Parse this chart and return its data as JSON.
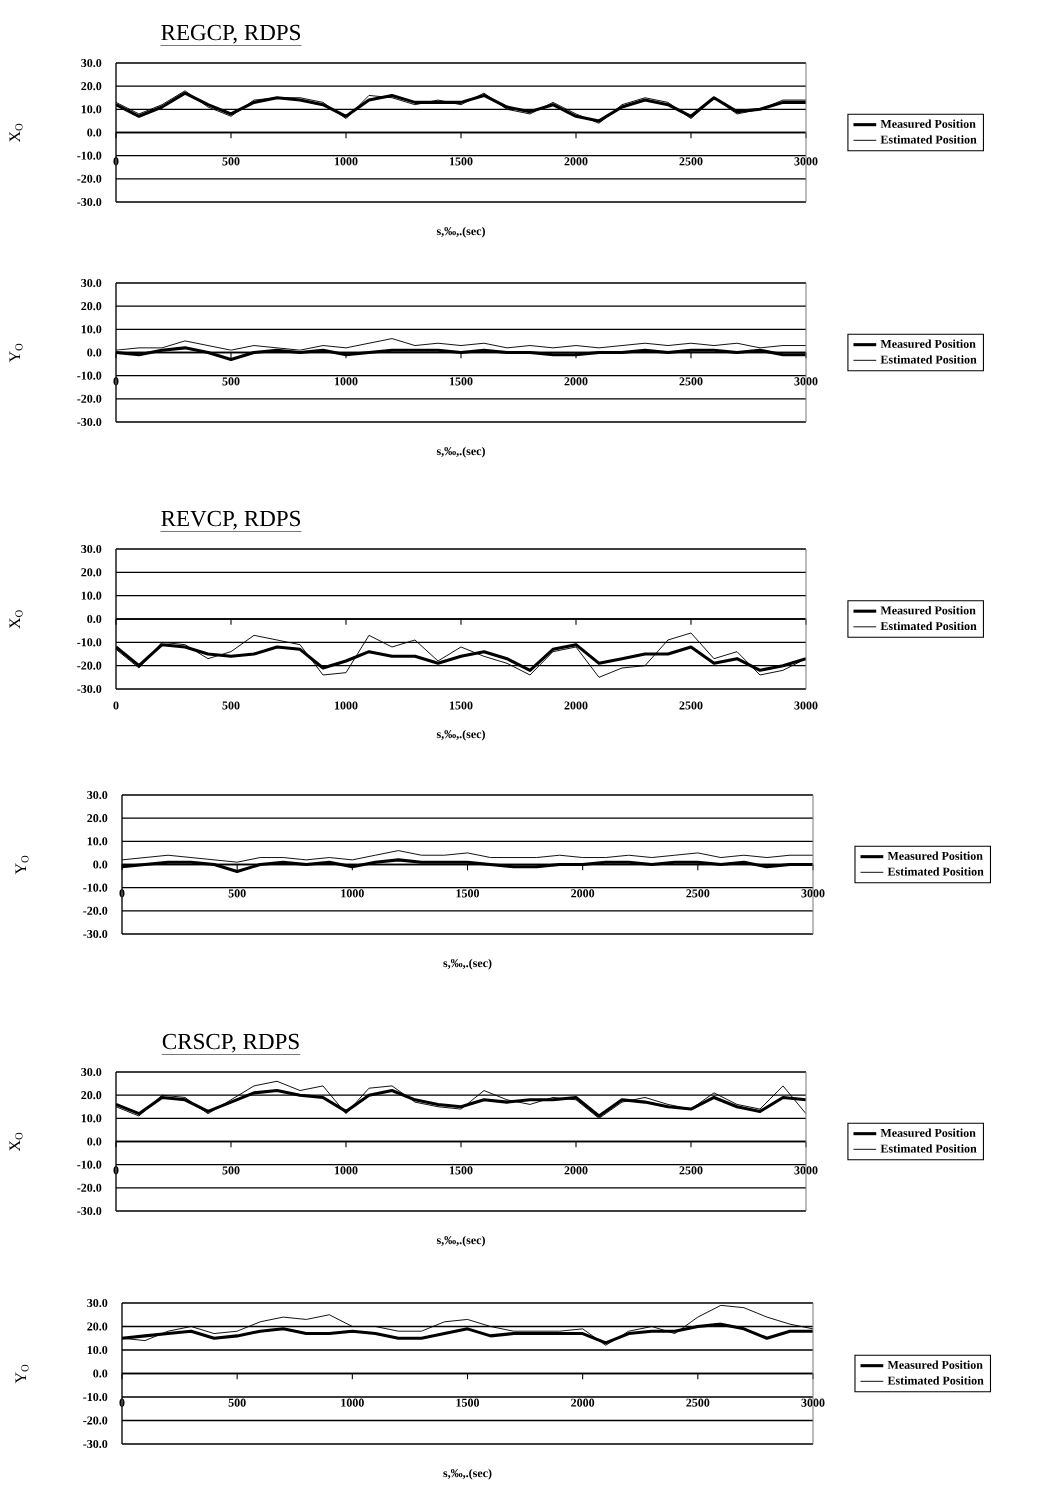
{
  "chart_data": [
    {
      "type": "line",
      "title": "REGCP, RDPS",
      "xlabel": "s,‰,.(sec)",
      "ylabel": "X$_{O}$",
      "xlim": [
        0,
        3000
      ],
      "ylim": [
        -30,
        30
      ],
      "xticks": [
        0,
        500,
        1000,
        1500,
        2000,
        2500,
        3000
      ],
      "yticks": [
        {
          "value": -30,
          "label": "-30.0"
        },
        {
          "value": -20,
          "label": "-20.0"
        },
        {
          "value": -10,
          "label": "-10.0"
        },
        {
          "value": 0,
          "label": "0.0"
        },
        {
          "value": 10,
          "label": "10.0"
        },
        {
          "value": 20,
          "label": "20.0"
        },
        {
          "value": 30,
          "label": "30.0"
        }
      ],
      "grid": "y",
      "legend": "right",
      "x": [
        0,
        100,
        200,
        300,
        400,
        500,
        600,
        700,
        800,
        900,
        1000,
        1100,
        1200,
        1300,
        1400,
        1500,
        1600,
        1700,
        1800,
        1900,
        2000,
        2100,
        2200,
        2300,
        2400,
        2500,
        2600,
        2700,
        2800,
        2900,
        3000
      ],
      "series": [
        {
          "name": "Measured Position",
          "color": "#000000",
          "values": [
            12,
            7,
            11,
            17,
            12,
            8,
            13,
            15,
            14,
            12,
            7,
            14,
            16,
            13,
            13,
            13,
            16,
            11,
            9,
            12,
            7,
            5,
            11,
            14,
            12,
            7,
            15,
            9,
            10,
            13,
            13
          ]
        },
        {
          "name": "Estimated Position",
          "color": "#000000",
          "values": [
            13,
            8,
            12,
            18,
            11,
            7,
            14,
            15,
            15,
            13,
            6,
            16,
            15,
            12,
            14,
            12,
            17,
            10,
            8,
            13,
            8,
            4,
            12,
            15,
            13,
            6,
            15,
            8,
            10,
            14,
            14
          ]
        }
      ]
    },
    {
      "type": "line",
      "xlabel": "s,‰,.(sec)",
      "ylabel": "Y$_{O}$",
      "xlim": [
        0,
        3000
      ],
      "ylim": [
        -30,
        30
      ],
      "xticks": [
        0,
        500,
        1000,
        1500,
        2000,
        2500,
        3000
      ],
      "yticks": [
        {
          "value": -30,
          "label": "-30.0"
        },
        {
          "value": -20,
          "label": "-20.0"
        },
        {
          "value": -10,
          "label": "-10.0"
        },
        {
          "value": 0,
          "label": "0.0"
        },
        {
          "value": 10,
          "label": "10.0"
        },
        {
          "value": 20,
          "label": "20.0"
        },
        {
          "value": 30,
          "label": "30.0"
        }
      ],
      "grid": "y",
      "legend": "right",
      "x": [
        0,
        100,
        200,
        300,
        400,
        500,
        600,
        700,
        800,
        900,
        1000,
        1100,
        1200,
        1300,
        1400,
        1500,
        1600,
        1700,
        1800,
        1900,
        2000,
        2100,
        2200,
        2300,
        2400,
        2500,
        2600,
        2700,
        2800,
        2900,
        3000
      ],
      "series": [
        {
          "name": "Measured Position",
          "color": "#000000",
          "values": [
            0,
            -1,
            1,
            2,
            0,
            -3,
            0,
            1,
            0,
            1,
            -1,
            0,
            1,
            1,
            1,
            0,
            1,
            0,
            0,
            -1,
            -1,
            0,
            0,
            1,
            0,
            1,
            1,
            0,
            1,
            -1,
            -1
          ]
        },
        {
          "name": "Estimated Position",
          "color": "#000000",
          "values": [
            1,
            2,
            2,
            5,
            3,
            1,
            3,
            2,
            1,
            3,
            2,
            4,
            6,
            3,
            4,
            3,
            4,
            2,
            3,
            2,
            3,
            2,
            3,
            4,
            3,
            4,
            3,
            4,
            2,
            3,
            3
          ]
        }
      ]
    },
    {
      "type": "line",
      "title": "REVCP, RDPS",
      "xlabel": "s,‰,.(sec)",
      "ylabel": "X$_{O}$",
      "xlim": [
        0,
        3000
      ],
      "ylim": [
        -30,
        30
      ],
      "xticks": [
        0,
        500,
        1000,
        1500,
        2000,
        2500,
        3000
      ],
      "yticks": [
        {
          "value": -30,
          "label": "-30.0"
        },
        {
          "value": -20,
          "label": "-20.0"
        },
        {
          "value": -10,
          "label": "-10.0"
        },
        {
          "value": 0,
          "label": "0.0"
        },
        {
          "value": 10,
          "label": "10.0"
        },
        {
          "value": 20,
          "label": "20.0"
        },
        {
          "value": 30,
          "label": "30.0"
        }
      ],
      "grid": "y",
      "legend": "right",
      "x": [
        0,
        100,
        200,
        300,
        400,
        500,
        600,
        700,
        800,
        900,
        1000,
        1100,
        1200,
        1300,
        1400,
        1500,
        1600,
        1700,
        1800,
        1900,
        2000,
        2100,
        2200,
        2300,
        2400,
        2500,
        2600,
        2700,
        2800,
        2900,
        3000
      ],
      "series": [
        {
          "name": "Measured Position",
          "color": "#000000",
          "values": [
            -12,
            -20,
            -11,
            -12,
            -15,
            -16,
            -15,
            -12,
            -13,
            -21,
            -18,
            -14,
            -16,
            -16,
            -19,
            -16,
            -14,
            -17,
            -22,
            -13,
            -11,
            -19,
            -17,
            -15,
            -15,
            -12,
            -19,
            -17,
            -22,
            -20,
            -17
          ]
        },
        {
          "name": "Estimated Position",
          "color": "#000000",
          "values": [
            -13,
            -21,
            -10,
            -11,
            -17,
            -14,
            -7,
            -9,
            -11,
            -24,
            -23,
            -7,
            -12,
            -9,
            -18,
            -12,
            -16,
            -19,
            -24,
            -14,
            -12,
            -25,
            -21,
            -20,
            -9,
            -6,
            -17,
            -14,
            -24,
            -22,
            -17
          ]
        }
      ]
    },
    {
      "type": "line",
      "xlabel": "s,‰,.(sec)",
      "ylabel": "Y$_{O}$",
      "xlim": [
        0,
        3000
      ],
      "ylim": [
        -30,
        30
      ],
      "xticks": [
        0,
        500,
        1000,
        1500,
        2000,
        2500,
        3000
      ],
      "yticks": [
        {
          "value": -30,
          "label": "-30.0"
        },
        {
          "value": -20,
          "label": "-20.0"
        },
        {
          "value": -10,
          "label": "-10.0"
        },
        {
          "value": 0,
          "label": "0.0"
        },
        {
          "value": 10,
          "label": "10.0"
        },
        {
          "value": 20,
          "label": "20.0"
        },
        {
          "value": 30,
          "label": "30.0"
        }
      ],
      "grid": "y",
      "legend": "right",
      "x": [
        0,
        100,
        200,
        300,
        400,
        500,
        600,
        700,
        800,
        900,
        1000,
        1100,
        1200,
        1300,
        1400,
        1500,
        1600,
        1700,
        1800,
        1900,
        2000,
        2100,
        2200,
        2300,
        2400,
        2500,
        2600,
        2700,
        2800,
        2900,
        3000
      ],
      "series": [
        {
          "name": "Measured Position",
          "color": "#000000",
          "values": [
            -1,
            0,
            1,
            1,
            0,
            -3,
            0,
            1,
            0,
            1,
            -1,
            1,
            2,
            1,
            1,
            1,
            0,
            -1,
            -1,
            0,
            0,
            1,
            1,
            0,
            1,
            1,
            0,
            1,
            -1,
            0,
            0
          ]
        },
        {
          "name": "Estimated Position",
          "color": "#000000",
          "values": [
            2,
            3,
            4,
            3,
            2,
            1,
            3,
            3,
            2,
            3,
            2,
            4,
            6,
            4,
            4,
            5,
            3,
            3,
            3,
            4,
            3,
            3,
            4,
            3,
            4,
            5,
            3,
            4,
            3,
            4,
            4
          ]
        }
      ]
    },
    {
      "type": "line",
      "title": "CRSCP, RDPS",
      "xlabel": "s,‰,.(sec)",
      "ylabel": "X$_{O}$",
      "xlim": [
        0,
        3000
      ],
      "ylim": [
        -30,
        30
      ],
      "xticks": [
        0,
        500,
        1000,
        1500,
        2000,
        2500,
        3000
      ],
      "yticks": [
        {
          "value": -30,
          "label": "-30.0"
        },
        {
          "value": -20,
          "label": "-20.0"
        },
        {
          "value": -10,
          "label": "-10.0"
        },
        {
          "value": 0,
          "label": "0.0"
        },
        {
          "value": 10,
          "label": "10.0"
        },
        {
          "value": 20,
          "label": "20.0"
        },
        {
          "value": 30,
          "label": "30.0"
        }
      ],
      "grid": "y",
      "legend": "right",
      "x": [
        0,
        100,
        200,
        300,
        400,
        500,
        600,
        700,
        800,
        900,
        1000,
        1100,
        1200,
        1300,
        1400,
        1500,
        1600,
        1700,
        1800,
        1900,
        2000,
        2100,
        2200,
        2300,
        2400,
        2500,
        2600,
        2700,
        2800,
        2900,
        3000
      ],
      "series": [
        {
          "name": "Measured Position",
          "color": "#000000",
          "values": [
            16,
            12,
            19,
            18,
            13,
            17,
            21,
            22,
            20,
            19,
            13,
            20,
            22,
            18,
            16,
            15,
            18,
            17,
            18,
            18,
            19,
            11,
            18,
            17,
            15,
            14,
            19,
            15,
            13,
            19,
            18
          ]
        },
        {
          "name": "Estimated Position",
          "color": "#000000",
          "values": [
            15,
            11,
            20,
            19,
            12,
            18,
            24,
            26,
            22,
            24,
            12,
            23,
            24,
            17,
            15,
            14,
            22,
            18,
            16,
            19,
            18,
            10,
            17,
            19,
            16,
            14,
            21,
            16,
            14,
            24,
            12
          ]
        }
      ]
    },
    {
      "type": "line",
      "xlabel": "s,‰,.(sec)",
      "ylabel": "Y$_{O}$",
      "xlim": [
        0,
        3000
      ],
      "ylim": [
        -30,
        30
      ],
      "xticks": [
        0,
        500,
        1000,
        1500,
        2000,
        2500,
        3000
      ],
      "yticks": [
        {
          "value": -30,
          "label": "-30.0"
        },
        {
          "value": -20,
          "label": "-20.0"
        },
        {
          "value": -10,
          "label": "-10.0"
        },
        {
          "value": 0,
          "label": "0.0"
        },
        {
          "value": 10,
          "label": "10.0"
        },
        {
          "value": 20,
          "label": "20.0"
        },
        {
          "value": 30,
          "label": "30.0"
        }
      ],
      "grid": "y",
      "legend": "right",
      "x": [
        0,
        100,
        200,
        300,
        400,
        500,
        600,
        700,
        800,
        900,
        1000,
        1100,
        1200,
        1300,
        1400,
        1500,
        1600,
        1700,
        1800,
        1900,
        2000,
        2100,
        2200,
        2300,
        2400,
        2500,
        2600,
        2700,
        2800,
        2900,
        3000
      ],
      "series": [
        {
          "name": "Measured Position",
          "color": "#000000",
          "values": [
            15,
            16,
            17,
            18,
            15,
            16,
            18,
            19,
            17,
            17,
            18,
            17,
            15,
            15,
            17,
            19,
            16,
            17,
            17,
            17,
            17,
            13,
            17,
            18,
            18,
            20,
            21,
            19,
            15,
            18,
            18
          ]
        },
        {
          "name": "Estimated Position",
          "color": "#000000",
          "values": [
            15,
            14,
            18,
            20,
            17,
            18,
            22,
            24,
            23,
            25,
            20,
            20,
            18,
            18,
            22,
            23,
            20,
            18,
            18,
            18,
            19,
            12,
            18,
            20,
            17,
            24,
            29,
            28,
            24,
            21,
            19
          ]
        }
      ]
    }
  ]
}
